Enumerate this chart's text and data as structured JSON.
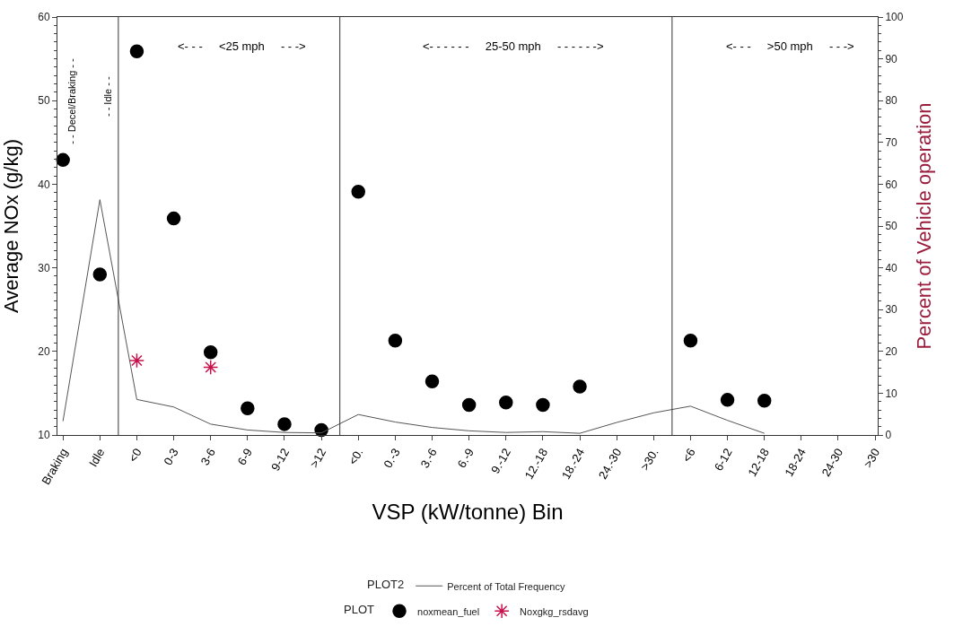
{
  "chart_data": {
    "type": "scatter",
    "xlabel": "VSP (kW/tonne) Bin",
    "ylabel": "Average NOx (g/kg)",
    "y2label": "Percent of Vehicle operation",
    "legend_title": [
      "PLOT2",
      "PLOT"
    ],
    "categories": [
      "Braking",
      "Idle",
      "<0",
      "0-3",
      "3-6",
      "6-9",
      "9-12",
      ">12",
      "<0.",
      "0.-3",
      "3.-6",
      "6.-9",
      "9.-12",
      "12.-18",
      "18.-24",
      "24.-30",
      ">30.",
      "<6",
      "6-12",
      "12-18",
      "18-24",
      "24-30",
      ">30"
    ],
    "series": [
      {
        "name": "Percent of Total Frequency",
        "type": "line",
        "axis": "y2",
        "color": "#555555",
        "marker": "none",
        "values": [
          3.3,
          56.3,
          8.5,
          6.7,
          2.6,
          1.2,
          0.6,
          0.5,
          4.9,
          3.1,
          1.8,
          1.0,
          0.6,
          0.8,
          0.4,
          3.0,
          5.3,
          6.9,
          3.5,
          0.4,
          null,
          null,
          null
        ]
      },
      {
        "name": "noxmean_fuel",
        "axis": "y",
        "color": "#000000",
        "marker": "circle",
        "values": [
          42.9,
          29.2,
          55.9,
          35.9,
          19.9,
          13.2,
          11.3,
          10.6,
          39.1,
          21.3,
          16.4,
          13.6,
          13.9,
          13.6,
          15.8,
          null,
          null,
          21.3,
          14.2,
          14.1,
          null,
          null,
          null
        ]
      },
      {
        "name": "Noxgkg_rsdavg",
        "axis": "y",
        "color": "#c8104a",
        "marker": "cross",
        "values": [
          null,
          null,
          18.9,
          null,
          18.1,
          null,
          null,
          null,
          null,
          null,
          null,
          null,
          null,
          null,
          null,
          null,
          null,
          null,
          null,
          null,
          null,
          null,
          null
        ]
      }
    ],
    "ylim": [
      10,
      60
    ],
    "yticks": [
      10,
      20,
      30,
      40,
      50,
      60
    ],
    "y2lim": [
      0,
      100
    ],
    "y2ticks": [
      0,
      10,
      20,
      30,
      40,
      50,
      60,
      70,
      80,
      90,
      100
    ],
    "annotations": [
      "- - Decel/Braking - -",
      "- - Idle - -",
      "<- - -     <25 mph     - - ->",
      "<- - - - - -     25-50 mph     - - - - - ->",
      "<- - -     >50 mph     - - ->"
    ],
    "legend": "bottom"
  }
}
